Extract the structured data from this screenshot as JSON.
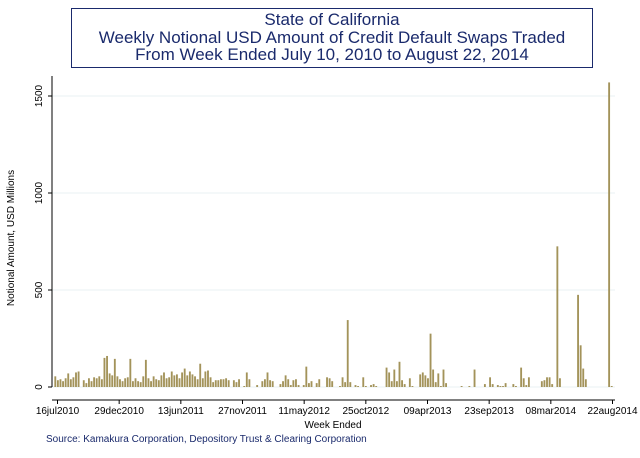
{
  "chart_data": {
    "type": "bar",
    "title_lines": [
      "State of California",
      "Weekly Notional USD Amount of Credit Default Swaps Traded",
      "From Week Ended July 10, 2010 to August 22, 2014"
    ],
    "xlabel": "Week Ended",
    "ylabel": "Notional Amount, USD Millions",
    "source": "Source: Kamakura Corporation, Depository Trust & Clearing Corporation",
    "ylim": [
      0,
      1600
    ],
    "yticks": [
      0,
      500,
      1000,
      1500
    ],
    "x_tick_labels": [
      "16jul2010",
      "29dec2010",
      "13jun2011",
      "27nov2011",
      "11may2012",
      "25oct2012",
      "09apr2013",
      "23sep2013",
      "08mar2014",
      "22aug2014"
    ],
    "bar_color": "#a3935a",
    "values": [
      55,
      35,
      40,
      30,
      45,
      70,
      40,
      50,
      75,
      80,
      0,
      35,
      20,
      45,
      30,
      50,
      45,
      55,
      40,
      150,
      160,
      70,
      60,
      145,
      55,
      40,
      30,
      45,
      50,
      145,
      30,
      45,
      30,
      25,
      55,
      140,
      45,
      30,
      55,
      40,
      35,
      60,
      75,
      45,
      50,
      80,
      60,
      65,
      45,
      75,
      95,
      60,
      80,
      65,
      55,
      40,
      120,
      45,
      80,
      85,
      50,
      25,
      35,
      35,
      40,
      40,
      45,
      35,
      0,
      35,
      25,
      40,
      0,
      5,
      75,
      40,
      0,
      0,
      10,
      0,
      30,
      40,
      75,
      35,
      30,
      0,
      0,
      15,
      30,
      60,
      40,
      10,
      35,
      40,
      10,
      0,
      10,
      105,
      20,
      30,
      0,
      20,
      40,
      0,
      0,
      50,
      45,
      30,
      0,
      0,
      5,
      50,
      25,
      345,
      25,
      0,
      10,
      5,
      0,
      50,
      5,
      0,
      10,
      15,
      5,
      0,
      0,
      0,
      100,
      75,
      30,
      90,
      30,
      130,
      35,
      15,
      0,
      45,
      5,
      0,
      0,
      65,
      75,
      60,
      45,
      275,
      90,
      25,
      70,
      5,
      90,
      20,
      0,
      0,
      0,
      0,
      0,
      5,
      0,
      0,
      5,
      0,
      90,
      0,
      0,
      0,
      15,
      0,
      50,
      15,
      0,
      10,
      5,
      5,
      20,
      0,
      0,
      15,
      5,
      0,
      100,
      45,
      10,
      50,
      0,
      0,
      0,
      0,
      30,
      35,
      50,
      50,
      15,
      0,
      725,
      45,
      0,
      0,
      0,
      0,
      0,
      0,
      475,
      215,
      95,
      40,
      0,
      0,
      0,
      0,
      0,
      0,
      0,
      0,
      1570,
      5
    ]
  }
}
